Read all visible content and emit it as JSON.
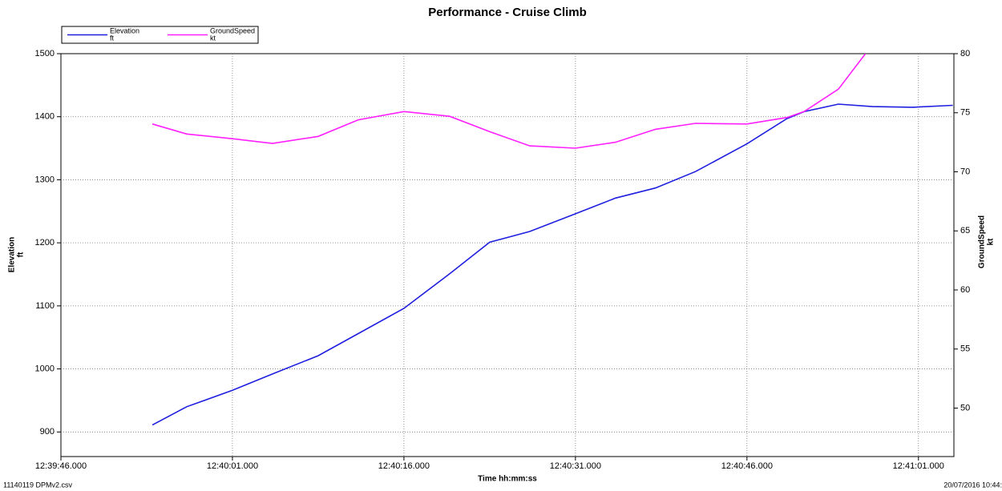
{
  "chart_data": {
    "type": "line",
    "title": "Performance - Cruise Climb",
    "xlabel": "Time hh:mm:ss",
    "footer_left": "11140119 DPMv2.csv",
    "footer_right": "20/07/2016 10:44:",
    "x": [
      45594,
      45597,
      45601,
      45604.5,
      45608.5,
      45612,
      45616,
      45620,
      45623.5,
      45627,
      45631,
      45634.5,
      45638,
      45641.5,
      45646,
      45649.5,
      45651,
      45654,
      45657,
      45660.5,
      45664
    ],
    "series": [
      {
        "name": "Elevation",
        "unit": "ft",
        "color": "#1f1fe0",
        "axis": "y",
        "values": [
          911,
          940,
          966,
          992,
          1021,
          1056,
          1096,
          1151,
          1201,
          1218,
          1246,
          1271,
          1287,
          1313,
          1357,
          1397,
          1408,
          1420,
          1416,
          1415,
          1418
        ]
      },
      {
        "name": "GroundSpeed",
        "unit": "kt",
        "color": "#ff1fff",
        "axis": "y2",
        "values": [
          74.05,
          73.2,
          72.8,
          72.4,
          73.0,
          74.4,
          75.1,
          74.7,
          73.4,
          72.2,
          72.0,
          72.5,
          73.6,
          74.1,
          74.05,
          74.6,
          75.1,
          77.0,
          80.8,
          null,
          null
        ]
      }
    ],
    "xlim": [
      45586,
      45664.1
    ],
    "xticks": [
      {
        "value": 45586,
        "label": "12:39:46.000"
      },
      {
        "value": 45601,
        "label": "12:40:01.000"
      },
      {
        "value": 45616,
        "label": "12:40:16.000"
      },
      {
        "value": 45631,
        "label": "12:40:31.000"
      },
      {
        "value": 45646,
        "label": "12:40:46.000"
      },
      {
        "value": 45661,
        "label": "12:41:01.000"
      }
    ],
    "ylim": [
      861,
      1500
    ],
    "yticks": [
      900,
      1000,
      1100,
      1200,
      1300,
      1400,
      1500
    ],
    "y2lim": [
      45.9,
      80
    ],
    "y2ticks": [
      50,
      55,
      60,
      65,
      70,
      75,
      80
    ],
    "grid": true
  }
}
